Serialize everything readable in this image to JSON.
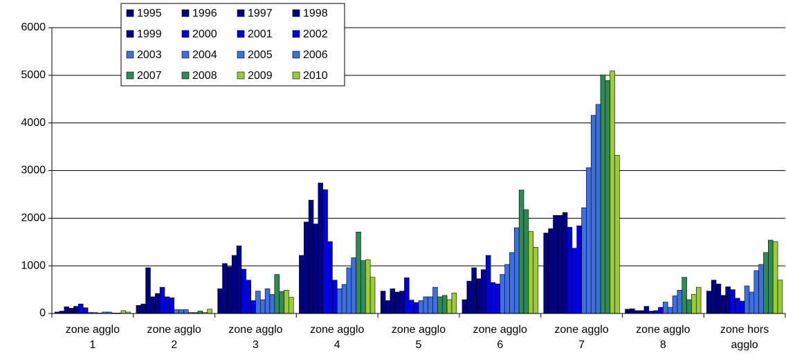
{
  "chart_data": {
    "type": "bar",
    "categories": [
      "zone agglo 1",
      "zone agglo 2",
      "zone agglo 3",
      "zone agglo 4",
      "zone agglo 5",
      "zone agglo 6",
      "zone agglo 7",
      "zone agglo 8",
      "zone hors agglo"
    ],
    "series": [
      {
        "name": "1995",
        "color": "#000080",
        "values": [
          30,
          170,
          520,
          1220,
          470,
          290,
          1690,
          90,
          470
        ]
      },
      {
        "name": "1996",
        "color": "#000080",
        "values": [
          50,
          200,
          1050,
          1920,
          270,
          680,
          1780,
          100,
          700
        ]
      },
      {
        "name": "1997",
        "color": "#000080",
        "values": [
          140,
          960,
          980,
          2380,
          520,
          960,
          2060,
          60,
          620
        ]
      },
      {
        "name": "1998",
        "color": "#000080",
        "values": [
          110,
          350,
          1220,
          1880,
          450,
          730,
          2060,
          60,
          380
        ]
      },
      {
        "name": "1999",
        "color": "#00008b",
        "values": [
          150,
          420,
          1420,
          2740,
          470,
          920,
          2120,
          150,
          560
        ]
      },
      {
        "name": "2000",
        "color": "#0000e6",
        "values": [
          200,
          550,
          930,
          2600,
          750,
          1220,
          1810,
          50,
          500
        ]
      },
      {
        "name": "2001",
        "color": "#0000e6",
        "values": [
          120,
          350,
          700,
          1510,
          280,
          650,
          1370,
          60,
          320
        ]
      },
      {
        "name": "2002",
        "color": "#0000e6",
        "values": [
          20,
          330,
          270,
          700,
          230,
          620,
          1840,
          130,
          260
        ]
      },
      {
        "name": "2003",
        "color": "#3d6fe0",
        "values": [
          20,
          80,
          470,
          520,
          270,
          820,
          2220,
          240,
          580
        ]
      },
      {
        "name": "2004",
        "color": "#3d6fe0",
        "values": [
          10,
          80,
          290,
          610,
          350,
          1030,
          3060,
          130,
          450
        ]
      },
      {
        "name": "2005",
        "color": "#3d6fe0",
        "values": [
          30,
          80,
          520,
          960,
          350,
          1280,
          4160,
          370,
          900
        ]
      },
      {
        "name": "2006",
        "color": "#3d6fe0",
        "values": [
          30,
          20,
          400,
          1170,
          550,
          1800,
          4390,
          490,
          1030
        ]
      },
      {
        "name": "2007",
        "color": "#2e8b57",
        "values": [
          10,
          20,
          820,
          1710,
          350,
          2590,
          5010,
          760,
          1280
        ]
      },
      {
        "name": "2008",
        "color": "#2e8b57",
        "values": [
          10,
          50,
          460,
          1110,
          380,
          2180,
          4890,
          290,
          1540
        ]
      },
      {
        "name": "2009",
        "color": "#9acd32",
        "values": [
          60,
          20,
          490,
          1130,
          290,
          1720,
          5090,
          400,
          1510
        ]
      },
      {
        "name": "2010",
        "color": "#9acd32",
        "values": [
          30,
          90,
          340,
          760,
          430,
          1390,
          3320,
          550,
          700
        ]
      }
    ],
    "ylim": [
      0,
      6000
    ],
    "yticks": [
      0,
      1000,
      2000,
      3000,
      4000,
      5000,
      6000
    ],
    "grid": true
  }
}
